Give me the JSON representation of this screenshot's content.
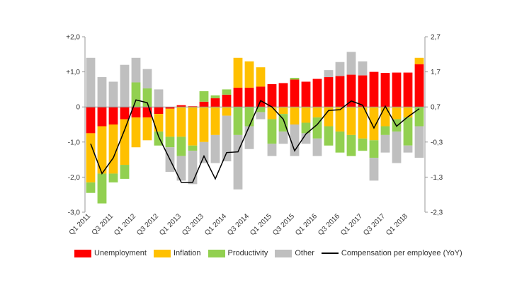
{
  "chart_data": {
    "type": "bar",
    "stacked": true,
    "categories": [
      "Q1 2011",
      "Q2 2011",
      "Q3 2011",
      "Q4 2011",
      "Q1 2012",
      "Q2 2012",
      "Q3 2012",
      "Q4 2012",
      "Q1 2013",
      "Q2 2013",
      "Q3 2013",
      "Q4 2013",
      "Q1 2014",
      "Q2 2014",
      "Q3 2014",
      "Q4 2014",
      "Q1 2015",
      "Q2 2015",
      "Q3 2015",
      "Q4 2015",
      "Q1 2016",
      "Q2 2016",
      "Q3 2016",
      "Q4 2016",
      "Q1 2017",
      "Q2 2017",
      "Q3 2017",
      "Q4 2017",
      "Q1 2018",
      "Q2 2018"
    ],
    "tick_labels": [
      "Q1 2011",
      "Q3 2011",
      "Q1 2012",
      "Q3 2012",
      "Q1 2013",
      "Q3 2013",
      "Q1 2014",
      "Q3 2014",
      "Q1 2015",
      "Q3 2015",
      "Q1 2016",
      "Q3 2016",
      "Q1 2017",
      "Q3 2017",
      "Q1 2018"
    ],
    "series": [
      {
        "name": "Unemployment",
        "color": "#ff0000",
        "values": [
          -0.75,
          -0.55,
          -0.5,
          -0.35,
          -0.3,
          -0.3,
          -0.2,
          -0.05,
          0.05,
          0.02,
          0.15,
          0.25,
          0.35,
          0.55,
          0.55,
          0.58,
          0.65,
          0.68,
          0.78,
          0.72,
          0.8,
          0.85,
          0.88,
          0.92,
          0.9,
          1.0,
          0.97,
          0.98,
          0.98,
          1.22
        ]
      },
      {
        "name": "Inflation",
        "color": "#ffc000",
        "values": [
          -1.4,
          -1.35,
          -1.4,
          -1.3,
          -0.85,
          -0.65,
          -0.5,
          -0.8,
          -0.85,
          -1.1,
          -1.0,
          -0.8,
          -0.25,
          0.85,
          0.75,
          0.55,
          -0.35,
          -0.2,
          -0.5,
          -0.45,
          -0.3,
          -0.55,
          -0.7,
          -0.8,
          -0.9,
          -0.95,
          -0.55,
          -0.35,
          -0.3,
          0.18
        ]
      },
      {
        "name": "Productivity",
        "color": "#92d050",
        "values": [
          -0.3,
          -0.85,
          -0.25,
          -0.4,
          0.7,
          0.53,
          -0.4,
          -0.3,
          -0.55,
          -0.15,
          0.3,
          0.08,
          0.15,
          -0.8,
          -0.55,
          -0.15,
          -0.7,
          -0.5,
          0.05,
          -0.3,
          -0.6,
          -0.55,
          -0.6,
          -0.6,
          -0.35,
          -0.5,
          -0.25,
          -0.35,
          -0.8,
          -0.55
        ]
      },
      {
        "name": "Other",
        "color": "#bfbfbf",
        "values": [
          1.4,
          0.85,
          0.72,
          1.2,
          0.7,
          0.55,
          0.5,
          -0.7,
          -0.7,
          -0.95,
          -0.6,
          -0.8,
          -1.3,
          -1.55,
          -0.65,
          -0.2,
          -0.35,
          -0.35,
          -0.9,
          -0.3,
          -0.5,
          0.2,
          0.4,
          0.65,
          0.4,
          -0.65,
          -0.5,
          -0.9,
          -0.2,
          -0.9
        ]
      },
      {
        "name": "Compensation per employee (YoY)",
        "color": "#000000",
        "type": "line",
        "axis": "right",
        "values": [
          -0.35,
          -1.2,
          -0.75,
          0.05,
          0.9,
          0.82,
          -0.15,
          -0.8,
          -1.45,
          -1.45,
          -0.7,
          -1.35,
          -0.6,
          -0.58,
          0.15,
          0.88,
          0.7,
          0.35,
          -0.55,
          -0.07,
          0.2,
          0.6,
          0.62,
          0.87,
          0.75,
          0.1,
          0.72,
          0.15,
          0.42,
          0.65
        ]
      }
    ],
    "ylim": [
      -3,
      2
    ],
    "y_ticks": [
      "+2,0",
      "+1,0",
      "0",
      "-1,0",
      "-2,0",
      "-3,0"
    ],
    "y2lim": [
      -2.3,
      2.7
    ],
    "y2_ticks": [
      "2,7",
      "1,7",
      "0,7",
      "-0,3",
      "-1,3",
      "-2,3"
    ],
    "legend_position": "bottom",
    "grid": false
  }
}
